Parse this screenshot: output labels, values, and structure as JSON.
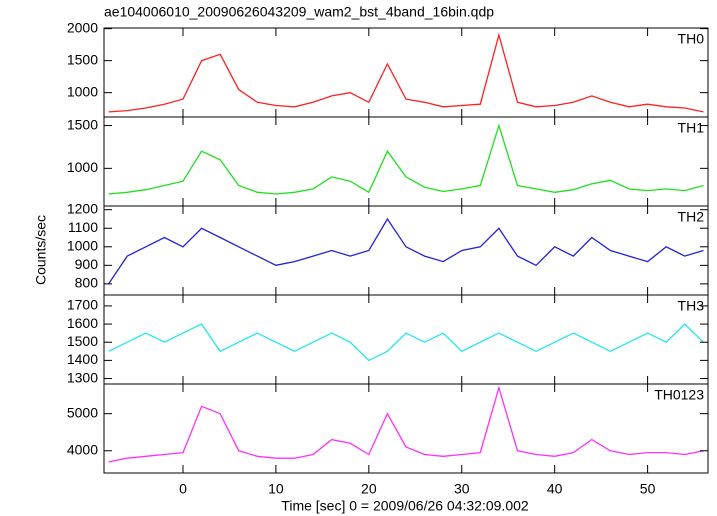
{
  "chart_data": {
    "type": "line",
    "title": "ae104006010_20090626043209_wam2_bst_4band_16bin.qdp",
    "x_label": "Time [sec] 0 = 2009/06/26 04:32:09.002",
    "y_label": "Counts/sec",
    "xlim": [
      -8.5,
      56.5
    ],
    "xticks": [
      0,
      10,
      20,
      30,
      40,
      50
    ],
    "x": [
      -8,
      -6,
      -4,
      -2,
      0,
      2,
      4,
      6,
      8,
      10,
      12,
      14,
      16,
      18,
      20,
      22,
      24,
      26,
      28,
      30,
      32,
      34,
      36,
      38,
      40,
      42,
      44,
      46,
      48,
      50,
      52,
      54,
      56
    ],
    "panels": [
      {
        "name": "TH0",
        "color": "#ff2020",
        "ylim": [
          620,
          2010
        ],
        "yticks": [
          1000,
          1500,
          2000
        ],
        "values": [
          700,
          720,
          760,
          820,
          900,
          1500,
          1600,
          1050,
          850,
          800,
          780,
          850,
          950,
          1000,
          850,
          1450,
          900,
          850,
          780,
          800,
          820,
          1900,
          850,
          780,
          800,
          850,
          950,
          850,
          780,
          820,
          780,
          760,
          700
        ]
      },
      {
        "name": "TH1",
        "color": "#20e020",
        "ylim": [
          560,
          1600
        ],
        "yticks": [
          1000,
          1500
        ],
        "values": [
          700,
          720,
          750,
          800,
          850,
          1200,
          1100,
          800,
          720,
          700,
          720,
          760,
          900,
          850,
          720,
          1200,
          900,
          780,
          730,
          760,
          800,
          1500,
          800,
          760,
          720,
          750,
          820,
          860,
          760,
          740,
          760,
          740,
          800
        ]
      },
      {
        "name": "TH2",
        "color": "#2020e0",
        "ylim": [
          740,
          1220
        ],
        "yticks": [
          800,
          900,
          1000,
          1100,
          1200
        ],
        "values": [
          800,
          950,
          1000,
          1050,
          1000,
          1100,
          1050,
          1000,
          950,
          900,
          920,
          950,
          980,
          950,
          980,
          1150,
          1000,
          950,
          920,
          980,
          1000,
          1100,
          950,
          900,
          1000,
          950,
          1050,
          980,
          950,
          920,
          1000,
          950,
          980
        ]
      },
      {
        "name": "TH3",
        "color": "#20e8f0",
        "ylim": [
          1270,
          1760
        ],
        "yticks": [
          1300,
          1400,
          1500,
          1600,
          1700
        ],
        "values": [
          1450,
          1500,
          1550,
          1500,
          1550,
          1600,
          1450,
          1500,
          1550,
          1500,
          1450,
          1500,
          1550,
          1500,
          1400,
          1450,
          1550,
          1500,
          1550,
          1450,
          1500,
          1550,
          1500,
          1450,
          1500,
          1550,
          1500,
          1450,
          1500,
          1550,
          1500,
          1600,
          1500
        ]
      },
      {
        "name": "TH0123",
        "color": "#ff30ff",
        "ylim": [
          3400,
          5800
        ],
        "yticks": [
          4000,
          5000
        ],
        "values": [
          3700,
          3800,
          3850,
          3900,
          3950,
          5200,
          5000,
          4000,
          3850,
          3800,
          3800,
          3900,
          4300,
          4200,
          3900,
          5000,
          4100,
          3900,
          3850,
          3900,
          3950,
          5700,
          4000,
          3900,
          3850,
          3950,
          4300,
          4000,
          3900,
          3950,
          3950,
          3900,
          4000
        ]
      }
    ]
  }
}
